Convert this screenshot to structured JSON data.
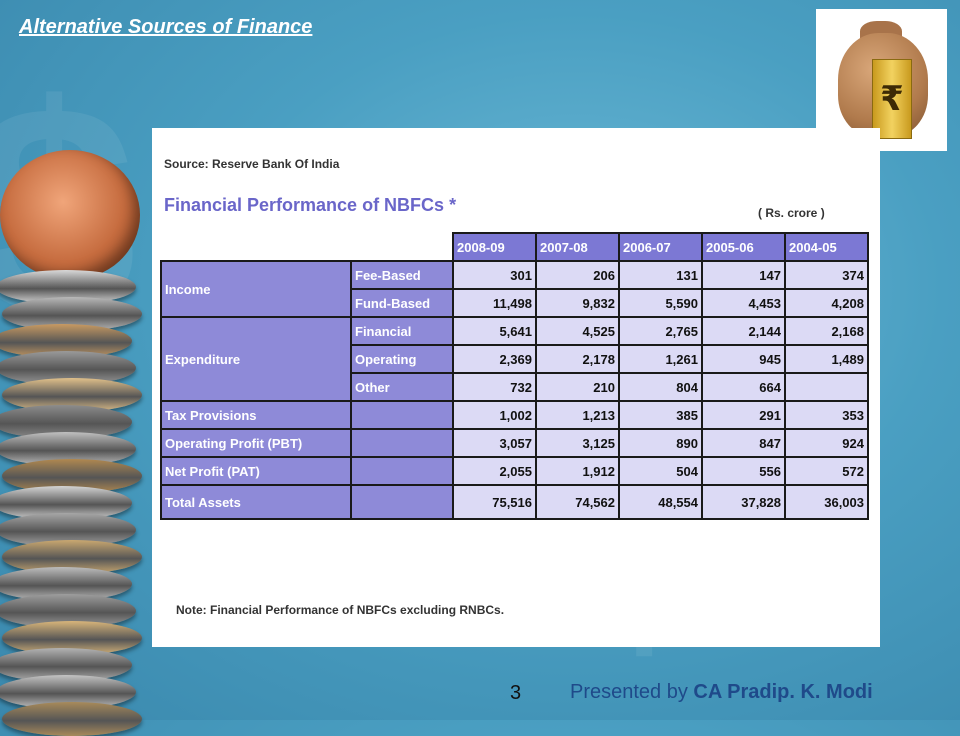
{
  "slide": {
    "title": "Alternative Sources of Finance",
    "page_number": "3",
    "footer_prefix": "Presented by ",
    "footer_name": "CA Pradip. K. Modi"
  },
  "bag_label": "₹",
  "table": {
    "source": "Source: Reserve Bank Of India",
    "title": "Financial Performance of NBFCs *",
    "unit": "( Rs. crore )",
    "note": "Note: Financial Performance of NBFCs excluding RNBCs.",
    "years": [
      "2008-09",
      "2007-08",
      "2006-07",
      "2005-06",
      "2004-05"
    ],
    "rows": [
      {
        "category": "Income",
        "sub": "Fee-Based",
        "values": [
          "301",
          "206",
          "131",
          "147",
          "374"
        ]
      },
      {
        "category": "",
        "sub": "Fund-Based",
        "values": [
          "11,498",
          "9,832",
          "5,590",
          "4,453",
          "4,208"
        ]
      },
      {
        "category": "Expenditure",
        "sub": "Financial",
        "values": [
          "5,641",
          "4,525",
          "2,765",
          "2,144",
          "2,168"
        ]
      },
      {
        "category": "",
        "sub": "Operating",
        "values": [
          "2,369",
          "2,178",
          "1,261",
          "945",
          "1,489"
        ]
      },
      {
        "category": "",
        "sub": "Other",
        "values": [
          "732",
          "210",
          "804",
          "664",
          ""
        ]
      },
      {
        "category": "Tax Provisions",
        "sub": "",
        "values": [
          "1,002",
          "1,213",
          "385",
          "291",
          "353"
        ]
      },
      {
        "category": "Operating Profit (PBT)",
        "sub": "",
        "values": [
          "3,057",
          "3,125",
          "890",
          "847",
          "924"
        ]
      },
      {
        "category": "Net Profit (PAT)",
        "sub": "",
        "values": [
          "2,055",
          "1,912",
          "504",
          "556",
          "572"
        ]
      },
      {
        "category": "Total Assets",
        "sub": "",
        "values": [
          "75,516",
          "74,562",
          "48,554",
          "37,828",
          "36,003"
        ]
      }
    ]
  },
  "colors": {
    "header_bg": "#7c78d4",
    "label_bg": "#8e8ad8",
    "cell_bg": "#dcdaf5",
    "title_color": "#6a66c9",
    "footer_name_color": "#1f4a8a"
  }
}
